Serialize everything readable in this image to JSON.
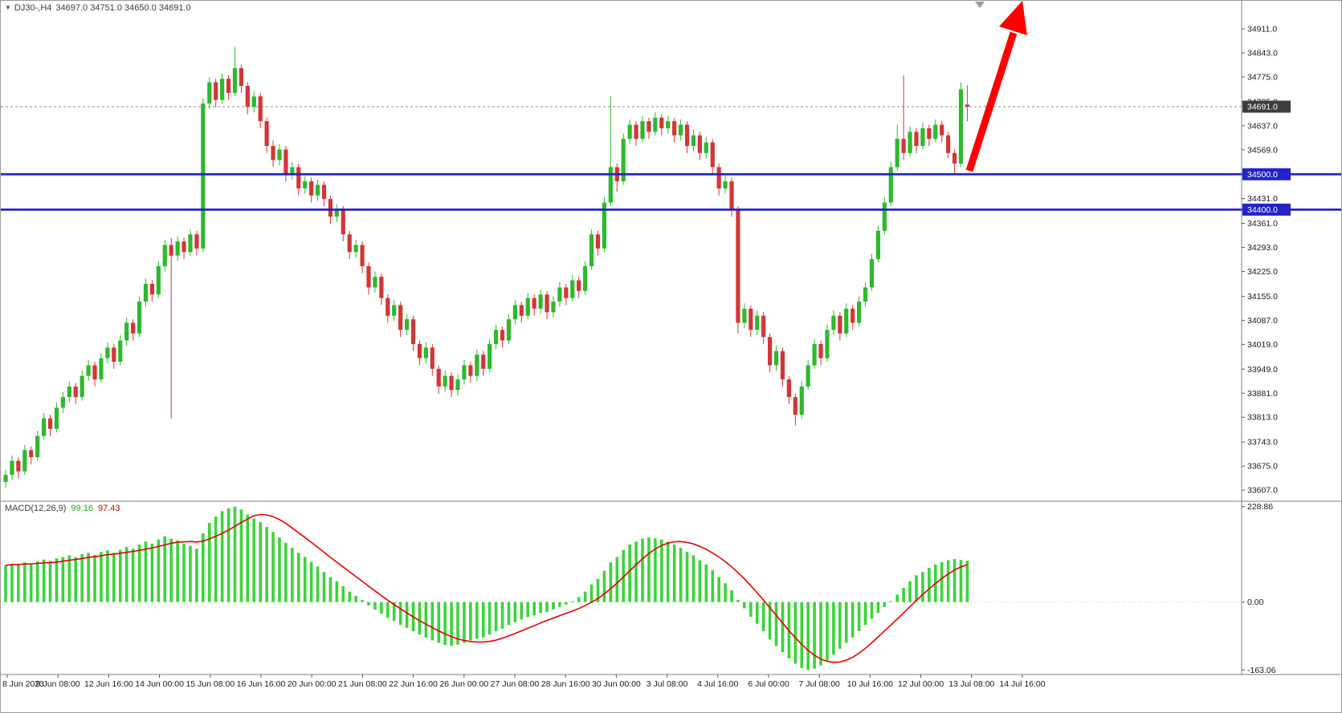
{
  "header": {
    "symbol_with_period": "DJ30-,H4",
    "ohlc_text": "34697.0 34751.0 34650.0 34691.0"
  },
  "macd_panel": {
    "label": "MACD(12,26,9)",
    "main_value": "99.16",
    "signal_value": "97.43"
  },
  "chart_data": {
    "type": "candlestick",
    "symbol": "DJ30-",
    "timeframe": "H4",
    "title": "DJ30-,H4 34697.0 34751.0 34650.0 34691.0",
    "last_ohlc": {
      "open": 34697.0,
      "high": 34751.0,
      "low": 34650.0,
      "close": 34691.0
    },
    "price_axis": {
      "scale_min": 33580,
      "scale_max": 34945,
      "ticks": [
        34911,
        34843,
        34775,
        34705,
        34637,
        34569,
        34500,
        34431,
        34361,
        34293,
        34225,
        34155,
        34087,
        34019,
        33949,
        33881,
        33813,
        33743,
        33675,
        33607
      ],
      "current_price": 34691.0
    },
    "hlines": [
      {
        "price": 34500.0,
        "label": "34500.0"
      },
      {
        "price": 34400.0,
        "label": "34400.0"
      }
    ],
    "candles": [
      [
        33630,
        33665,
        33614,
        33650
      ],
      [
        33650,
        33705,
        33635,
        33690
      ],
      [
        33690,
        33700,
        33640,
        33660
      ],
      [
        33660,
        33735,
        33650,
        33720
      ],
      [
        33720,
        33730,
        33680,
        33700
      ],
      [
        33700,
        33775,
        33690,
        33760
      ],
      [
        33760,
        33825,
        33750,
        33810
      ],
      [
        33810,
        33820,
        33760,
        33780
      ],
      [
        33780,
        33855,
        33770,
        33840
      ],
      [
        33840,
        33885,
        33825,
        33870
      ],
      [
        33870,
        33915,
        33855,
        33900
      ],
      [
        33900,
        33910,
        33850,
        33870
      ],
      [
        33870,
        33945,
        33860,
        33930
      ],
      [
        33930,
        33975,
        33915,
        33960
      ],
      [
        33960,
        33970,
        33900,
        33920
      ],
      [
        33920,
        33995,
        33910,
        33980
      ],
      [
        33980,
        34025,
        33965,
        34010
      ],
      [
        34010,
        34020,
        33950,
        33970
      ],
      [
        33970,
        34045,
        33960,
        34030
      ],
      [
        34030,
        34095,
        34015,
        34080
      ],
      [
        34080,
        34090,
        34030,
        34050
      ],
      [
        34050,
        34155,
        34040,
        34140
      ],
      [
        34140,
        34205,
        34125,
        34190
      ],
      [
        34190,
        34200,
        34140,
        34160
      ],
      [
        34160,
        34255,
        34150,
        34240
      ],
      [
        34240,
        34315,
        34225,
        34300
      ],
      [
        34300,
        34320,
        33810,
        34270
      ],
      [
        34270,
        34325,
        34255,
        34310
      ],
      [
        34310,
        34320,
        34260,
        34280
      ],
      [
        34280,
        34345,
        34270,
        34330
      ],
      [
        34330,
        34340,
        34270,
        34290
      ],
      [
        34290,
        34715,
        34280,
        34700
      ],
      [
        34700,
        34775,
        34685,
        34760
      ],
      [
        34760,
        34770,
        34690,
        34710
      ],
      [
        34710,
        34785,
        34700,
        34770
      ],
      [
        34770,
        34780,
        34710,
        34730
      ],
      [
        34730,
        34860,
        34720,
        34800
      ],
      [
        34800,
        34810,
        34730,
        34750
      ],
      [
        34750,
        34760,
        34670,
        34690
      ],
      [
        34690,
        34735,
        34675,
        34720
      ],
      [
        34720,
        34730,
        34630,
        34650
      ],
      [
        34650,
        34660,
        34560,
        34580
      ],
      [
        34580,
        34595,
        34520,
        34540
      ],
      [
        34540,
        34585,
        34525,
        34570
      ],
      [
        34570,
        34580,
        34480,
        34500
      ],
      [
        34500,
        34535,
        34485,
        34520
      ],
      [
        34520,
        34530,
        34440,
        34460
      ],
      [
        34460,
        34495,
        34445,
        34480
      ],
      [
        34480,
        34490,
        34420,
        34440
      ],
      [
        34440,
        34485,
        34425,
        34470
      ],
      [
        34470,
        34480,
        34410,
        34430
      ],
      [
        34430,
        34440,
        34360,
        34380
      ],
      [
        34380,
        34415,
        34365,
        34400
      ],
      [
        34400,
        34410,
        34310,
        34330
      ],
      [
        34330,
        34340,
        34260,
        34280
      ],
      [
        34280,
        34315,
        34265,
        34300
      ],
      [
        34300,
        34310,
        34220,
        34240
      ],
      [
        34240,
        34250,
        34160,
        34180
      ],
      [
        34180,
        34225,
        34165,
        34210
      ],
      [
        34210,
        34220,
        34130,
        34150
      ],
      [
        34150,
        34160,
        34080,
        34100
      ],
      [
        34100,
        34145,
        34085,
        34130
      ],
      [
        34130,
        34140,
        34040,
        34060
      ],
      [
        34060,
        34105,
        34045,
        34090
      ],
      [
        34090,
        34100,
        34000,
        34020
      ],
      [
        34020,
        34030,
        33960,
        33980
      ],
      [
        33980,
        34025,
        33965,
        34010
      ],
      [
        34010,
        34020,
        33930,
        33950
      ],
      [
        33950,
        33960,
        33880,
        33900
      ],
      [
        33900,
        33945,
        33885,
        33930
      ],
      [
        33930,
        33940,
        33870,
        33890
      ],
      [
        33890,
        33935,
        33875,
        33920
      ],
      [
        33920,
        33975,
        33905,
        33960
      ],
      [
        33960,
        33970,
        33910,
        33930
      ],
      [
        33930,
        34005,
        33915,
        33990
      ],
      [
        33990,
        34000,
        33930,
        33950
      ],
      [
        33950,
        34035,
        33940,
        34020
      ],
      [
        34020,
        34075,
        34005,
        34060
      ],
      [
        34060,
        34070,
        34010,
        34030
      ],
      [
        34030,
        34105,
        34020,
        34090
      ],
      [
        34090,
        34145,
        34075,
        34130
      ],
      [
        34130,
        34140,
        34080,
        34100
      ],
      [
        34100,
        34165,
        34090,
        34150
      ],
      [
        34150,
        34160,
        34100,
        34120
      ],
      [
        34120,
        34175,
        34105,
        34160
      ],
      [
        34160,
        34170,
        34090,
        34110
      ],
      [
        34110,
        34155,
        34095,
        34140
      ],
      [
        34140,
        34195,
        34125,
        34180
      ],
      [
        34180,
        34190,
        34130,
        34150
      ],
      [
        34150,
        34215,
        34140,
        34200
      ],
      [
        34200,
        34210,
        34150,
        34170
      ],
      [
        34170,
        34255,
        34160,
        34240
      ],
      [
        34240,
        34345,
        34230,
        34330
      ],
      [
        34330,
        34340,
        34270,
        34290
      ],
      [
        34290,
        34435,
        34280,
        34420
      ],
      [
        34420,
        34720,
        34410,
        34520
      ],
      [
        34520,
        34530,
        34450,
        34480
      ],
      [
        34480,
        34615,
        34470,
        34600
      ],
      [
        34600,
        34655,
        34585,
        34640
      ],
      [
        34640,
        34650,
        34580,
        34600
      ],
      [
        34600,
        34665,
        34590,
        34650
      ],
      [
        34650,
        34660,
        34600,
        34620
      ],
      [
        34620,
        34675,
        34610,
        34660
      ],
      [
        34660,
        34670,
        34610,
        34630
      ],
      [
        34630,
        34665,
        34615,
        34650
      ],
      [
        34650,
        34660,
        34590,
        34610
      ],
      [
        34610,
        34655,
        34595,
        34640
      ],
      [
        34640,
        34650,
        34560,
        34580
      ],
      [
        34580,
        34625,
        34565,
        34610
      ],
      [
        34610,
        34620,
        34540,
        34560
      ],
      [
        34560,
        34605,
        34545,
        34590
      ],
      [
        34590,
        34600,
        34500,
        34520
      ],
      [
        34520,
        34530,
        34440,
        34460
      ],
      [
        34460,
        34495,
        34445,
        34480
      ],
      [
        34480,
        34490,
        34380,
        34400
      ],
      [
        34400,
        34410,
        34050,
        34080
      ],
      [
        34080,
        34135,
        34065,
        34120
      ],
      [
        34120,
        34130,
        34040,
        34060
      ],
      [
        34060,
        34115,
        34045,
        34100
      ],
      [
        34100,
        34110,
        34020,
        34040
      ],
      [
        34040,
        34050,
        33940,
        33960
      ],
      [
        33960,
        34015,
        33945,
        34000
      ],
      [
        34000,
        34010,
        33900,
        33920
      ],
      [
        33920,
        33930,
        33850,
        33870
      ],
      [
        33870,
        33880,
        33790,
        33820
      ],
      [
        33820,
        33915,
        33810,
        33900
      ],
      [
        33900,
        33975,
        33890,
        33960
      ],
      [
        33960,
        34035,
        33950,
        34020
      ],
      [
        34020,
        34030,
        33960,
        33980
      ],
      [
        33980,
        34075,
        33970,
        34060
      ],
      [
        34060,
        34115,
        34045,
        34100
      ],
      [
        34100,
        34110,
        34030,
        34050
      ],
      [
        34050,
        34135,
        34040,
        34120
      ],
      [
        34120,
        34130,
        34060,
        34080
      ],
      [
        34080,
        34155,
        34070,
        34140
      ],
      [
        34140,
        34195,
        34125,
        34180
      ],
      [
        34180,
        34275,
        34170,
        34260
      ],
      [
        34260,
        34355,
        34250,
        34340
      ],
      [
        34340,
        34435,
        34330,
        34420
      ],
      [
        34420,
        34535,
        34410,
        34520
      ],
      [
        34520,
        34640,
        34510,
        34600
      ],
      [
        34600,
        34780,
        34540,
        34560
      ],
      [
        34560,
        34635,
        34550,
        34620
      ],
      [
        34620,
        34630,
        34560,
        34580
      ],
      [
        34580,
        34645,
        34570,
        34630
      ],
      [
        34630,
        34640,
        34580,
        34600
      ],
      [
        34600,
        34655,
        34590,
        34640
      ],
      [
        34640,
        34650,
        34590,
        34610
      ],
      [
        34610,
        34620,
        34545,
        34560
      ],
      [
        34560,
        34570,
        34500,
        34530
      ],
      [
        34530,
        34760,
        34520,
        34740
      ],
      [
        34697,
        34751,
        34650,
        34691
      ]
    ],
    "indicator": {
      "name": "MACD",
      "params": [
        12,
        26,
        9
      ],
      "value": 99.16,
      "signal": 97.43,
      "axis_ticks": [
        228.86,
        0.0,
        -163.06
      ],
      "scale_min": -170,
      "scale_max": 236,
      "histogram": [
        88,
        92,
        90,
        95,
        93,
        98,
        102,
        99,
        105,
        108,
        112,
        108,
        115,
        118,
        113,
        120,
        124,
        118,
        125,
        132,
        128,
        138,
        145,
        140,
        150,
        158,
        152,
        148,
        140,
        135,
        128,
        165,
        190,
        205,
        218,
        225,
        228.86,
        222,
        210,
        200,
        192,
        180,
        168,
        155,
        142,
        130,
        118,
        108,
        96,
        85,
        72,
        60,
        50,
        38,
        25,
        15,
        5,
        -8,
        -18,
        -28,
        -38,
        -45,
        -55,
        -62,
        -70,
        -78,
        -85,
        -92,
        -98,
        -103,
        -105,
        -102,
        -98,
        -92,
        -88,
        -85,
        -78,
        -70,
        -64,
        -55,
        -48,
        -42,
        -36,
        -32,
        -26,
        -24,
        -18,
        -12,
        -6,
        2,
        12,
        25,
        42,
        55,
        75,
        95,
        108,
        125,
        138,
        145,
        152,
        155,
        153,
        150,
        145,
        138,
        130,
        120,
        112,
        100,
        90,
        76,
        60,
        45,
        28,
        5,
        -15,
        -35,
        -52,
        -70,
        -90,
        -105,
        -120,
        -135,
        -148,
        -158,
        -163.06,
        -160,
        -152,
        -140,
        -126,
        -112,
        -98,
        -85,
        -70,
        -55,
        -40,
        -26,
        -12,
        2,
        18,
        34,
        50,
        64,
        72,
        82,
        90,
        96,
        100,
        103,
        101,
        99.16
      ]
    },
    "time_labels": [
      "8 Jun 2023",
      "9 Jun 08:00",
      "12 Jun 16:00",
      "14 Jun 00:00",
      "15 Jun 08:00",
      "16 Jun 16:00",
      "20 Jun 00:00",
      "21 Jun 08:00",
      "22 Jun 16:00",
      "26 Jun 00:00",
      "27 Jun 08:00",
      "28 Jun 16:00",
      "30 Jun 00:00",
      "3 Jul 08:00",
      "4 Jul 16:00",
      "6 Jul 00:00",
      "7 Jul 08:00",
      "10 Jul 16:00",
      "12 Jul 00:00",
      "13 Jul 08:00",
      "14 Jul 16:00"
    ],
    "annotations": [
      {
        "type": "arrow",
        "direction": "up-right",
        "color": "#ff0000"
      }
    ],
    "colors": {
      "up": "#2eb82e",
      "down": "#d23636",
      "histogram": "#3bd33b",
      "signal": "#e60000",
      "hline": "#2323c8",
      "arrow": "#ff0000",
      "current_tag_bg": "#3d3d3d"
    }
  }
}
